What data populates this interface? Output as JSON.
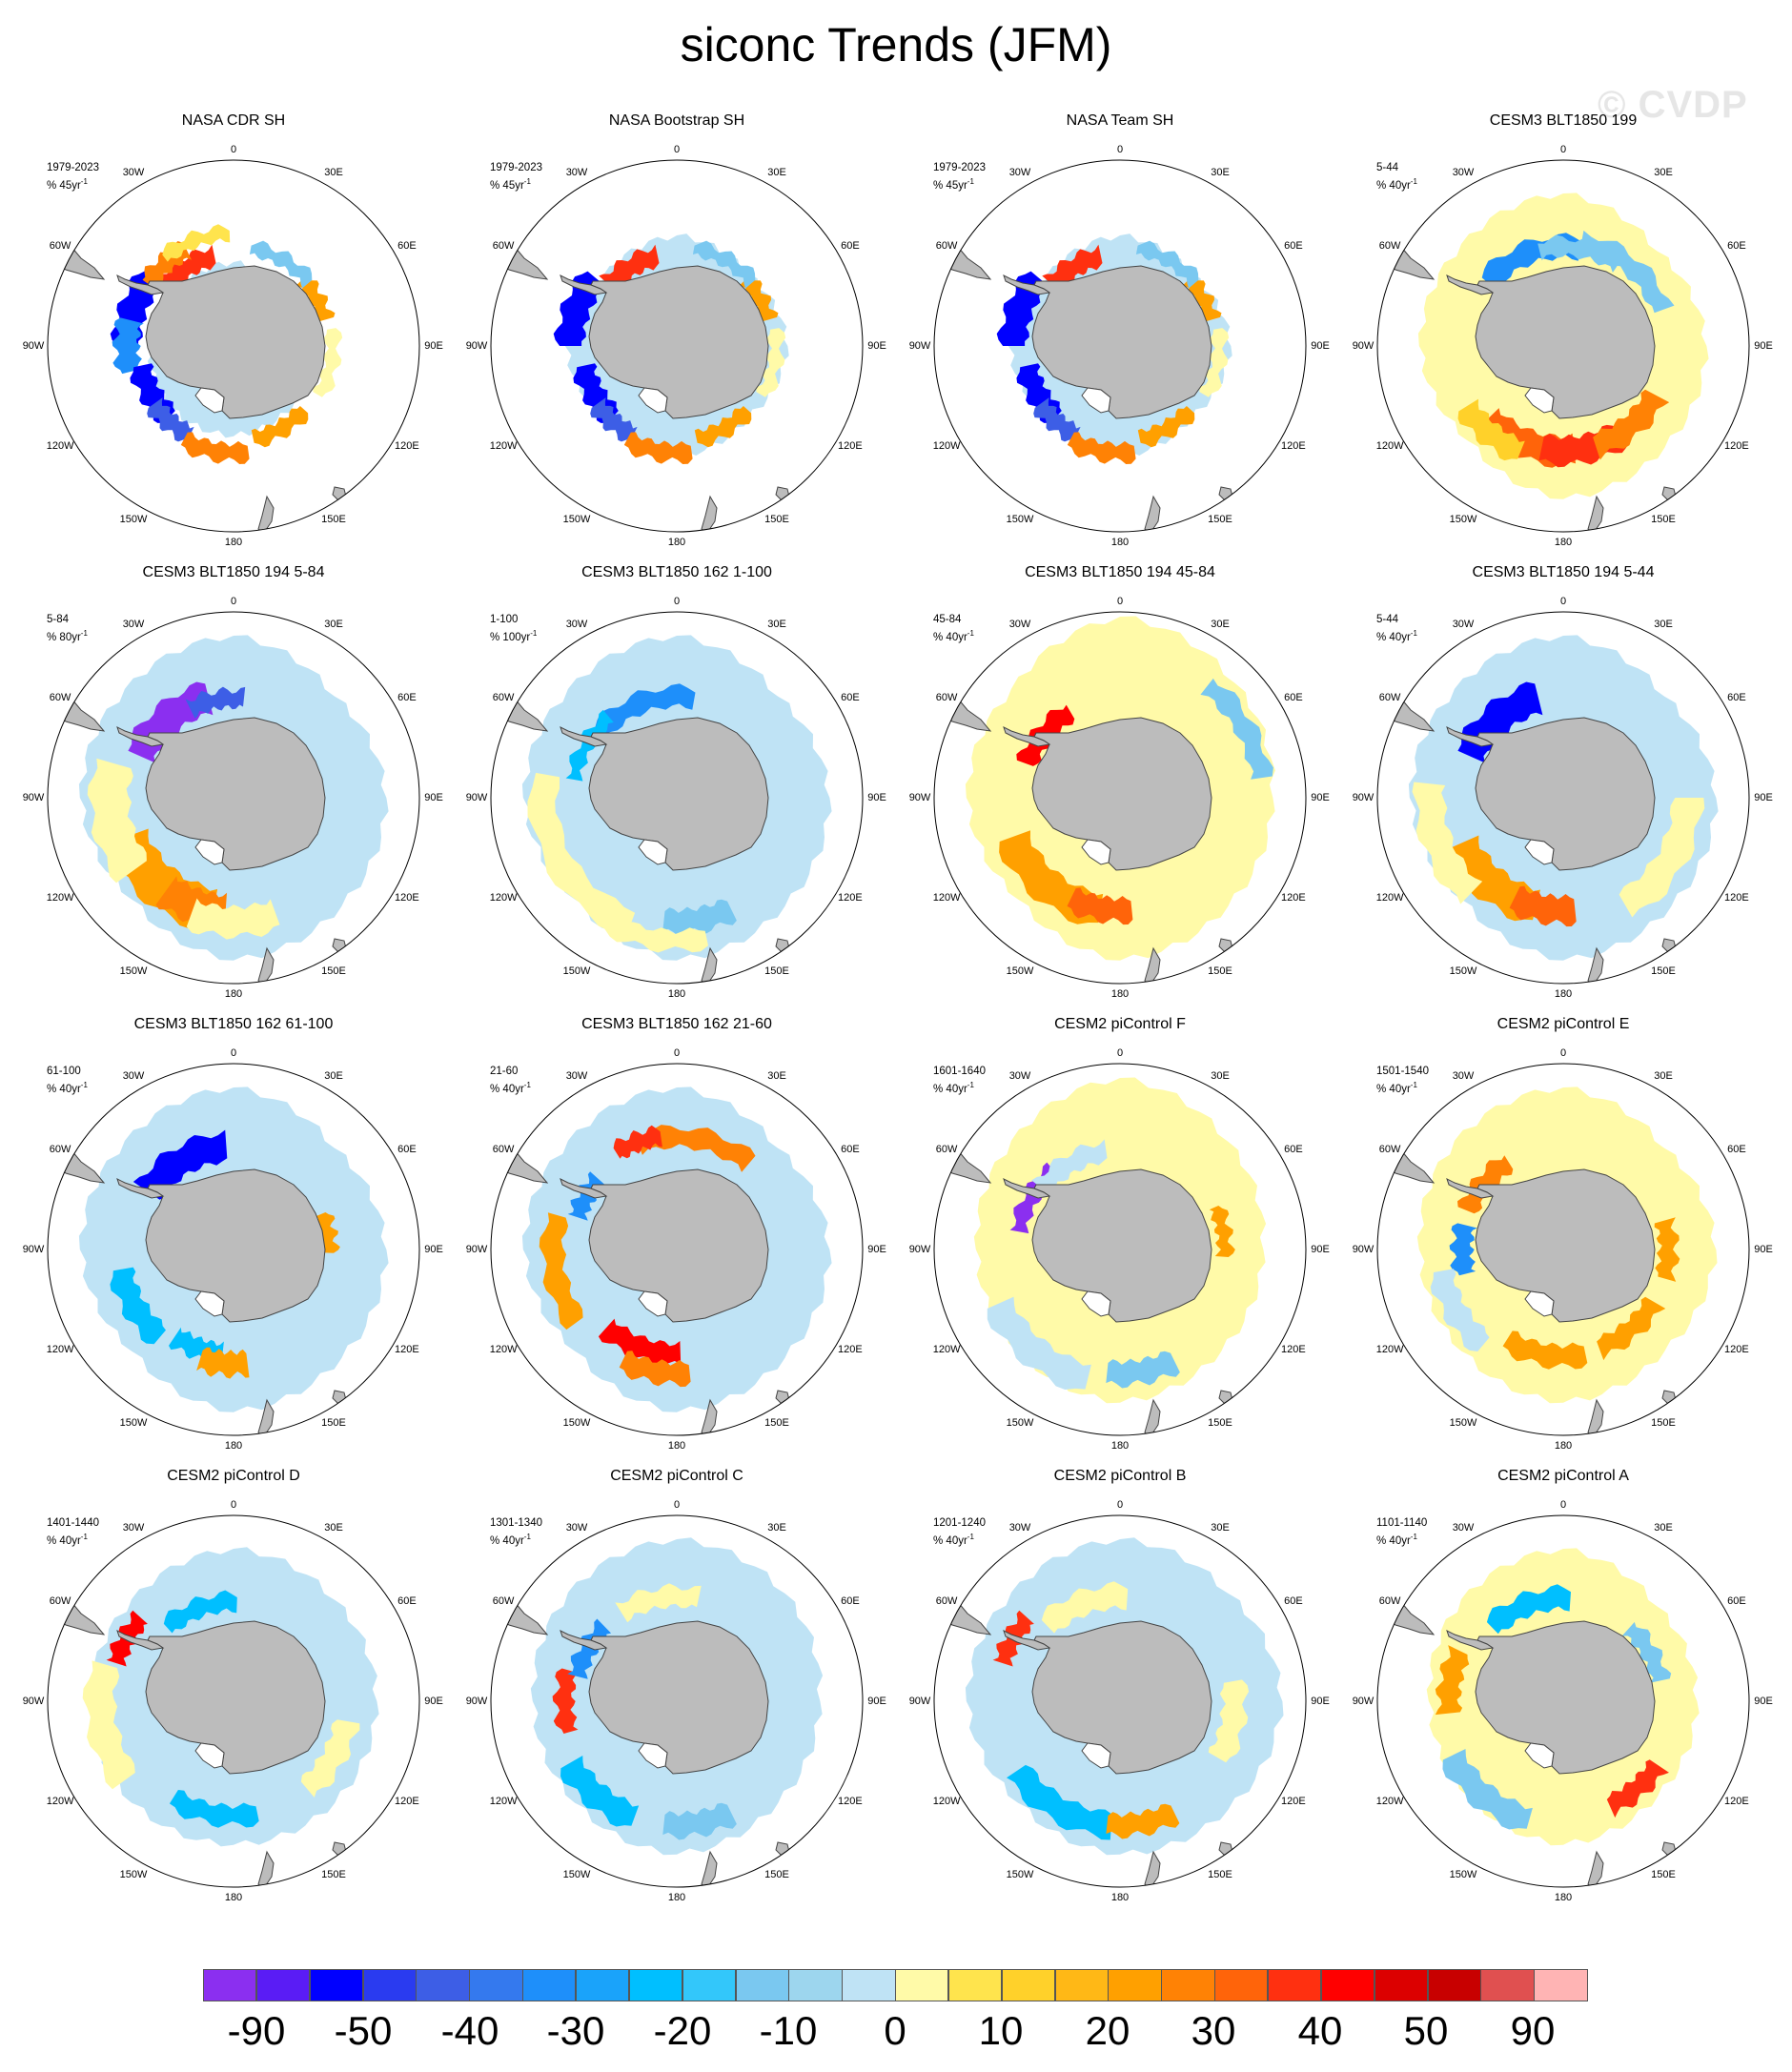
{
  "figure": {
    "title": "siconc Trends (JFM)",
    "watermark": "© CVDP"
  },
  "longitude_labels": [
    "0",
    "30E",
    "60E",
    "90E",
    "120E",
    "150E",
    "180",
    "150W",
    "120W",
    "90W",
    "60W",
    "30W"
  ],
  "panels": [
    {
      "title": "NASA CDR SH",
      "period": "1979-2023",
      "units_base": "% 45yr",
      "units_sup": "-1",
      "pattern": "obs_cdr"
    },
    {
      "title": "NASA Bootstrap SH",
      "period": "1979-2023",
      "units_base": "% 45yr",
      "units_sup": "-1",
      "pattern": "obs_bootstrap"
    },
    {
      "title": "NASA Team SH",
      "period": "1979-2023",
      "units_base": "% 45yr",
      "units_sup": "-1",
      "pattern": "obs_team"
    },
    {
      "title": "CESM3 BLT1850 199",
      "period": "5-44",
      "units_base": "% 40yr",
      "units_sup": "-1",
      "pattern": "blt199"
    },
    {
      "title": "CESM3 BLT1850 194 5-84",
      "period": "5-84",
      "units_base": "% 80yr",
      "units_sup": "-1",
      "pattern": "blt194_584"
    },
    {
      "title": "CESM3 BLT1850 162 1-100",
      "period": "1-100",
      "units_base": "% 100yr",
      "units_sup": "-1",
      "pattern": "blt162_1100"
    },
    {
      "title": "CESM3 BLT1850 194 45-84",
      "period": "45-84",
      "units_base": "% 40yr",
      "units_sup": "-1",
      "pattern": "blt194_4584"
    },
    {
      "title": "CESM3 BLT1850 194 5-44",
      "period": "5-44",
      "units_base": "% 40yr",
      "units_sup": "-1",
      "pattern": "blt194_544"
    },
    {
      "title": "CESM3 BLT1850 162 61-100",
      "period": "61-100",
      "units_base": "% 40yr",
      "units_sup": "-1",
      "pattern": "blt162_61100"
    },
    {
      "title": "CESM3 BLT1850 162 21-60",
      "period": "21-60",
      "units_base": "% 40yr",
      "units_sup": "-1",
      "pattern": "blt162_2160"
    },
    {
      "title": "CESM2 piControl F",
      "period": "1601-1640",
      "units_base": "% 40yr",
      "units_sup": "-1",
      "pattern": "pic_f"
    },
    {
      "title": "CESM2 piControl E",
      "period": "1501-1540",
      "units_base": "% 40yr",
      "units_sup": "-1",
      "pattern": "pic_e"
    },
    {
      "title": "CESM2 piControl D",
      "period": "1401-1440",
      "units_base": "% 40yr",
      "units_sup": "-1",
      "pattern": "pic_d"
    },
    {
      "title": "CESM2 piControl C",
      "period": "1301-1340",
      "units_base": "% 40yr",
      "units_sup": "-1",
      "pattern": "pic_c"
    },
    {
      "title": "CESM2 piControl B",
      "period": "1201-1240",
      "units_base": "% 40yr",
      "units_sup": "-1",
      "pattern": "pic_b"
    },
    {
      "title": "CESM2 piControl A",
      "period": "1101-1140",
      "units_base": "% 40yr",
      "units_sup": "-1",
      "pattern": "pic_a"
    }
  ],
  "colorbar": {
    "colors": [
      "#8b2ff0",
      "#5a1cf5",
      "#0000ff",
      "#2a3bf0",
      "#3d5ee6",
      "#3479ee",
      "#1e8ffa",
      "#1aa3fa",
      "#00bfff",
      "#33c7fa",
      "#7ac8f0",
      "#9dd6ee",
      "#bfe3f5",
      "#fffaa8",
      "#ffe44d",
      "#ffd12a",
      "#ffb816",
      "#ffa000",
      "#ff8205",
      "#ff640a",
      "#ff3010",
      "#ff0000",
      "#dc0000",
      "#c80000",
      "#e05050",
      "#ffb4b4"
    ],
    "labels": [
      "-90",
      "-50",
      "-40",
      "-30",
      "-20",
      "-10",
      "0",
      "10",
      "20",
      "30",
      "40",
      "50",
      "90"
    ]
  },
  "colors": {
    "land": "#bcbcbc",
    "coast": "#444444"
  }
}
